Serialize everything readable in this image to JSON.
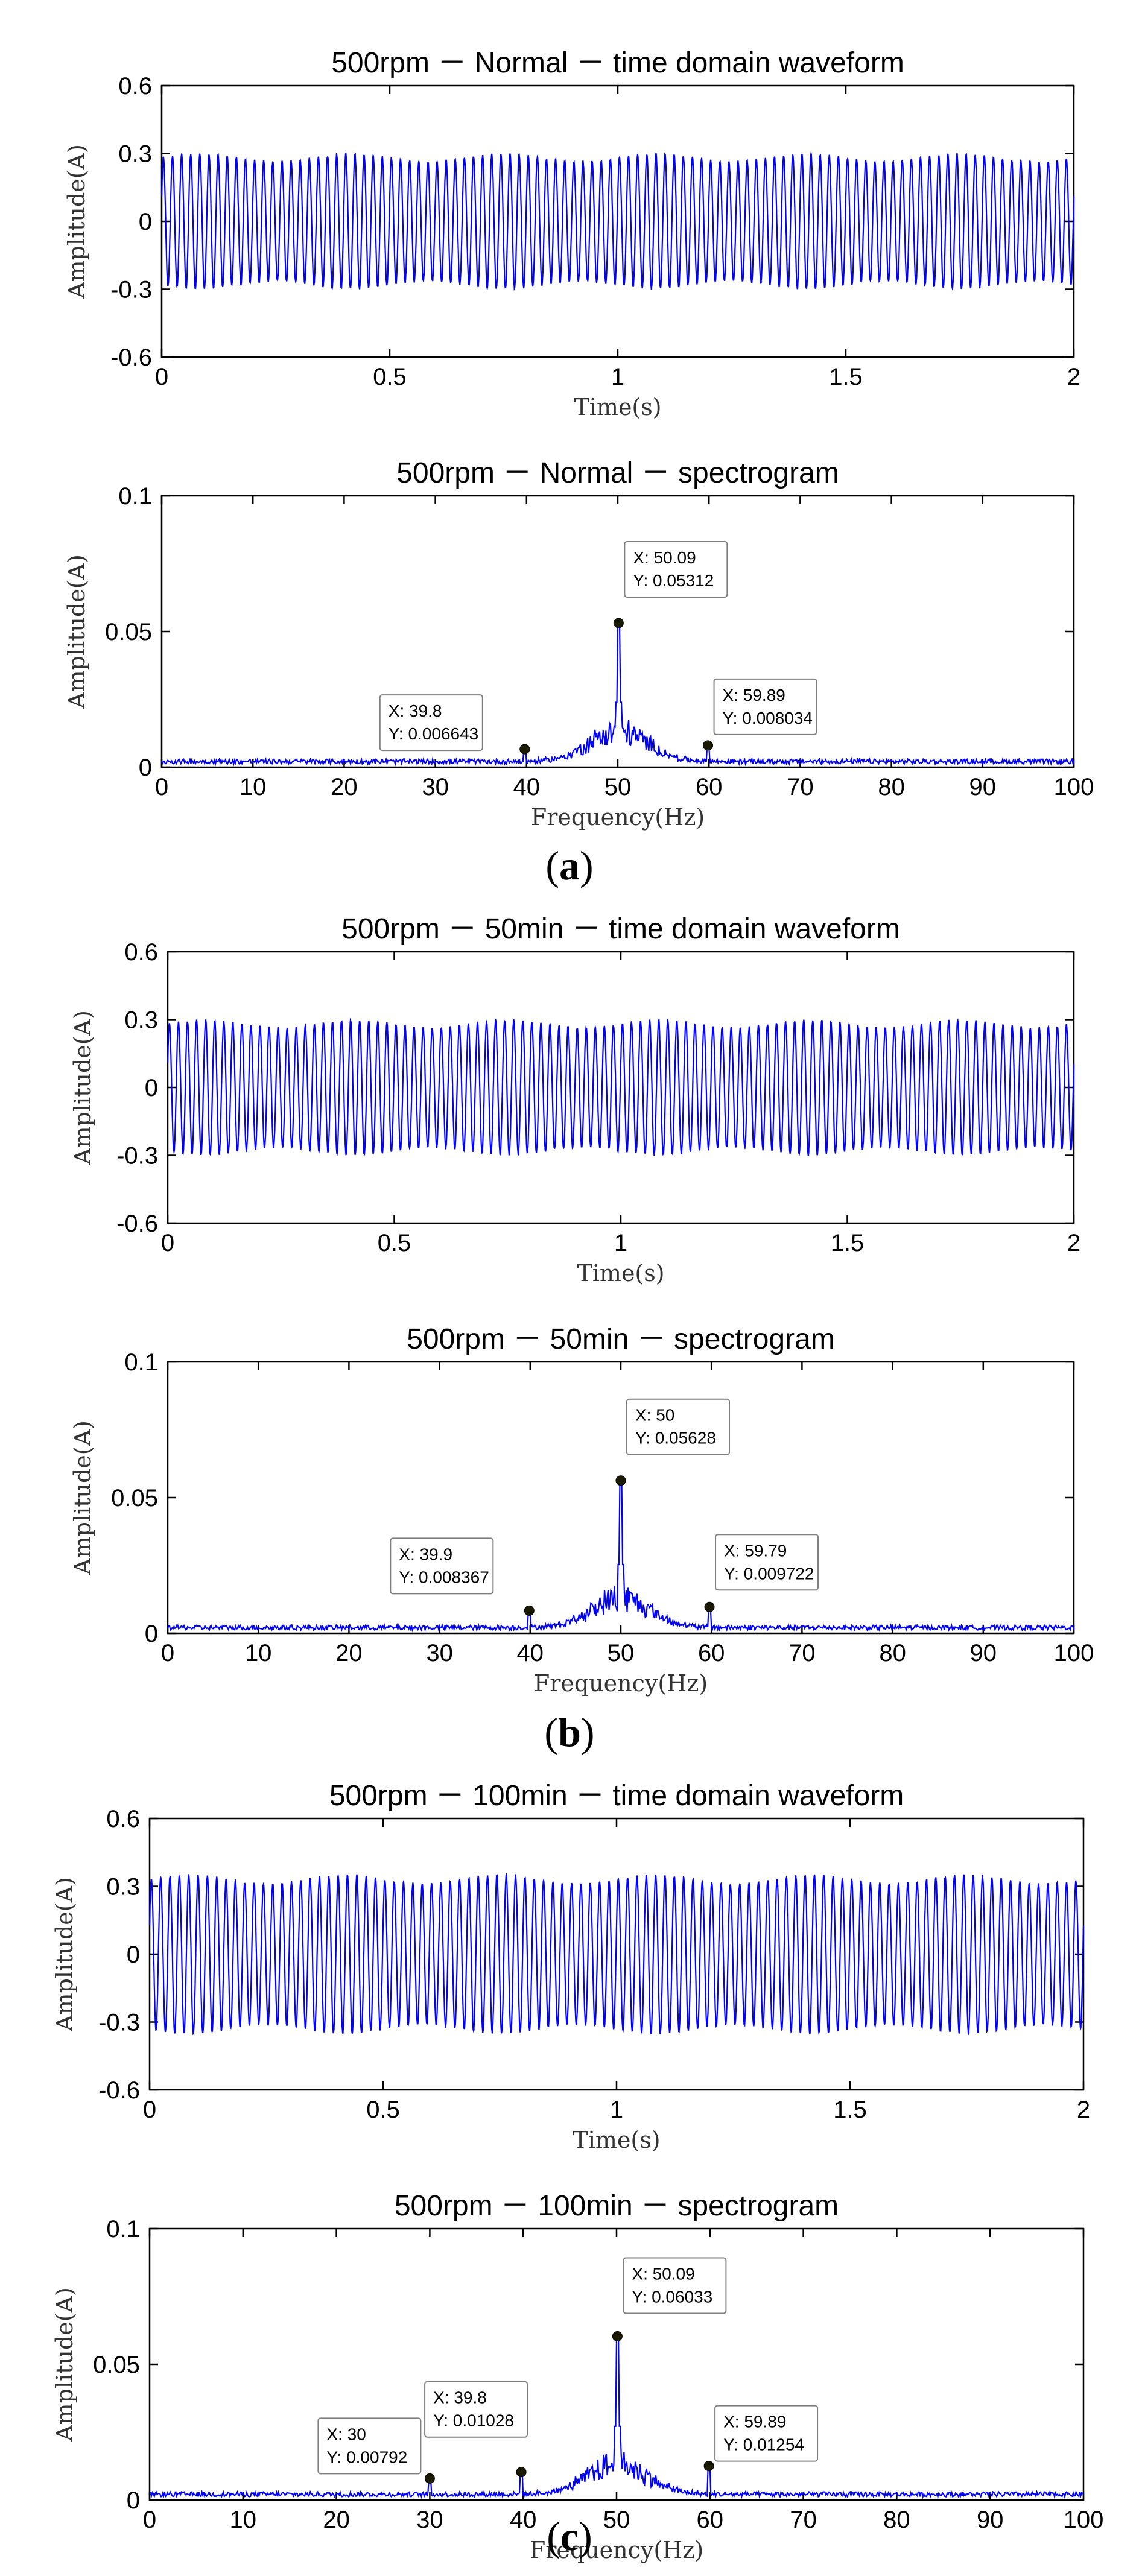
{
  "series_color": "#0000ff",
  "chart_data": [
    {
      "id": "a-time",
      "type": "line",
      "title": "500rpm － Normal － time domain waveform",
      "xlabel": "Time(s)",
      "ylabel": "Amplitude(A)",
      "xlim": [
        0,
        2
      ],
      "ylim": [
        -0.6,
        0.6
      ],
      "xticks": [
        0,
        0.5,
        1,
        1.5,
        2
      ],
      "xtick_labels": [
        "0",
        "0.5",
        "1",
        "1.5",
        "2"
      ],
      "yticks": [
        0.6,
        0.3,
        0,
        -0.3,
        -0.6
      ],
      "ytick_labels": [
        "0.6",
        "0.3",
        "0",
        "-0.3",
        "-0.6"
      ],
      "signal": {
        "frequency_hz": 50,
        "amplitude": 0.28,
        "duration_s": 2
      }
    },
    {
      "id": "a-spec",
      "type": "line",
      "title": "500rpm － Normal － spectrogram",
      "xlabel": "Frequency(Hz)",
      "ylabel": "Amplitude(A)",
      "xlim": [
        0,
        100
      ],
      "ylim": [
        0,
        0.1
      ],
      "xticks": [
        0,
        10,
        20,
        30,
        40,
        50,
        60,
        70,
        80,
        90,
        100
      ],
      "xtick_labels": [
        "0",
        "10",
        "20",
        "30",
        "40",
        "50",
        "60",
        "70",
        "80",
        "90",
        "100"
      ],
      "yticks": [
        0.1,
        0.05,
        0
      ],
      "ytick_labels": [
        "0.1",
        "0.05",
        "0"
      ],
      "peaks": [
        {
          "x": 39.8,
          "y": 0.006643
        },
        {
          "x": 50.09,
          "y": 0.05312
        },
        {
          "x": 59.89,
          "y": 0.008034
        }
      ],
      "datatips": [
        {
          "x_label": "X: 39.8",
          "y_label": "Y: 0.006643",
          "x": 39.8,
          "y": 0.006643
        },
        {
          "x_label": "X: 50.09",
          "y_label": "Y: 0.05312",
          "x": 50.09,
          "y": 0.05312
        },
        {
          "x_label": "X: 59.89",
          "y_label": "Y: 0.008034",
          "x": 59.89,
          "y": 0.008034
        }
      ]
    },
    {
      "id": "b-time",
      "type": "line",
      "title": "500rpm － 50min － time domain waveform",
      "xlabel": "Time(s)",
      "ylabel": "Amplitude(A)",
      "xlim": [
        0,
        2
      ],
      "ylim": [
        -0.6,
        0.6
      ],
      "xticks": [
        0,
        0.5,
        1,
        1.5,
        2
      ],
      "xtick_labels": [
        "0",
        "0.5",
        "1",
        "1.5",
        "2"
      ],
      "yticks": [
        0.6,
        0.3,
        0,
        -0.3,
        -0.6
      ],
      "ytick_labels": [
        "0.6",
        "0.3",
        "0",
        "-0.3",
        "-0.6"
      ],
      "signal": {
        "frequency_hz": 50,
        "amplitude": 0.28,
        "duration_s": 2
      }
    },
    {
      "id": "b-spec",
      "type": "line",
      "title": "500rpm － 50min － spectrogram",
      "xlabel": "Frequency(Hz)",
      "ylabel": "Amplitude(A)",
      "xlim": [
        0,
        100
      ],
      "ylim": [
        0,
        0.1
      ],
      "xticks": [
        0,
        10,
        20,
        30,
        40,
        50,
        60,
        70,
        80,
        90,
        100
      ],
      "xtick_labels": [
        "0",
        "10",
        "20",
        "30",
        "40",
        "50",
        "60",
        "70",
        "80",
        "90",
        "100"
      ],
      "yticks": [
        0.1,
        0.05,
        0
      ],
      "ytick_labels": [
        "0.1",
        "0.05",
        "0"
      ],
      "peaks": [
        {
          "x": 39.9,
          "y": 0.008367
        },
        {
          "x": 50,
          "y": 0.05628
        },
        {
          "x": 59.79,
          "y": 0.009722
        }
      ],
      "datatips": [
        {
          "x_label": "X: 39.9",
          "y_label": "Y: 0.008367",
          "x": 39.9,
          "y": 0.008367
        },
        {
          "x_label": "X: 50",
          "y_label": "Y: 0.05628",
          "x": 50,
          "y": 0.05628
        },
        {
          "x_label": "X: 59.79",
          "y_label": "Y: 0.009722",
          "x": 59.79,
          "y": 0.009722
        }
      ]
    },
    {
      "id": "c-time",
      "type": "line",
      "title": "500rpm － 100min － time domain waveform",
      "xlabel": "Time(s)",
      "ylabel": "Amplitude(A)",
      "xlim": [
        0,
        2
      ],
      "ylim": [
        -0.6,
        0.6
      ],
      "xticks": [
        0,
        0.5,
        1,
        1.5,
        2
      ],
      "xtick_labels": [
        "0",
        "0.5",
        "1",
        "1.5",
        "2"
      ],
      "yticks": [
        0.6,
        0.3,
        0,
        -0.3,
        -0.6
      ],
      "ytick_labels": [
        "0.6",
        "0.3",
        "0",
        "-0.3",
        "-0.6"
      ],
      "signal": {
        "frequency_hz": 50,
        "amplitude": 0.33,
        "duration_s": 2
      }
    },
    {
      "id": "c-spec",
      "type": "line",
      "title": "500rpm － 100min － spectrogram",
      "xlabel": "Frequency(Hz)",
      "ylabel": "Amplitude(A)",
      "xlim": [
        0,
        100
      ],
      "ylim": [
        0,
        0.1
      ],
      "xticks": [
        0,
        10,
        20,
        30,
        40,
        50,
        60,
        70,
        80,
        90,
        100
      ],
      "xtick_labels": [
        "0",
        "10",
        "20",
        "30",
        "40",
        "50",
        "60",
        "70",
        "80",
        "90",
        "100"
      ],
      "yticks": [
        0.1,
        0.05,
        0
      ],
      "ytick_labels": [
        "0.1",
        "0.05",
        "0"
      ],
      "peaks": [
        {
          "x": 30,
          "y": 0.00792
        },
        {
          "x": 39.8,
          "y": 0.01028
        },
        {
          "x": 50.09,
          "y": 0.06033
        },
        {
          "x": 59.89,
          "y": 0.01254
        }
      ],
      "datatips": [
        {
          "x_label": "X: 30",
          "y_label": "Y: 0.00792",
          "x": 30,
          "y": 0.00792
        },
        {
          "x_label": "X: 39.8",
          "y_label": "Y: 0.01028",
          "x": 39.8,
          "y": 0.01028
        },
        {
          "x_label": "X: 50.09",
          "y_label": "Y: 0.06033",
          "x": 50.09,
          "y": 0.06033
        },
        {
          "x_label": "X: 59.89",
          "y_label": "Y: 0.01254",
          "x": 59.89,
          "y": 0.01254
        }
      ]
    }
  ],
  "panel_labels": [
    {
      "open": "(",
      "letter": "a",
      "close": ")"
    },
    {
      "open": "(",
      "letter": "b",
      "close": ")"
    },
    {
      "open": "(",
      "letter": "c",
      "close": ")"
    }
  ]
}
